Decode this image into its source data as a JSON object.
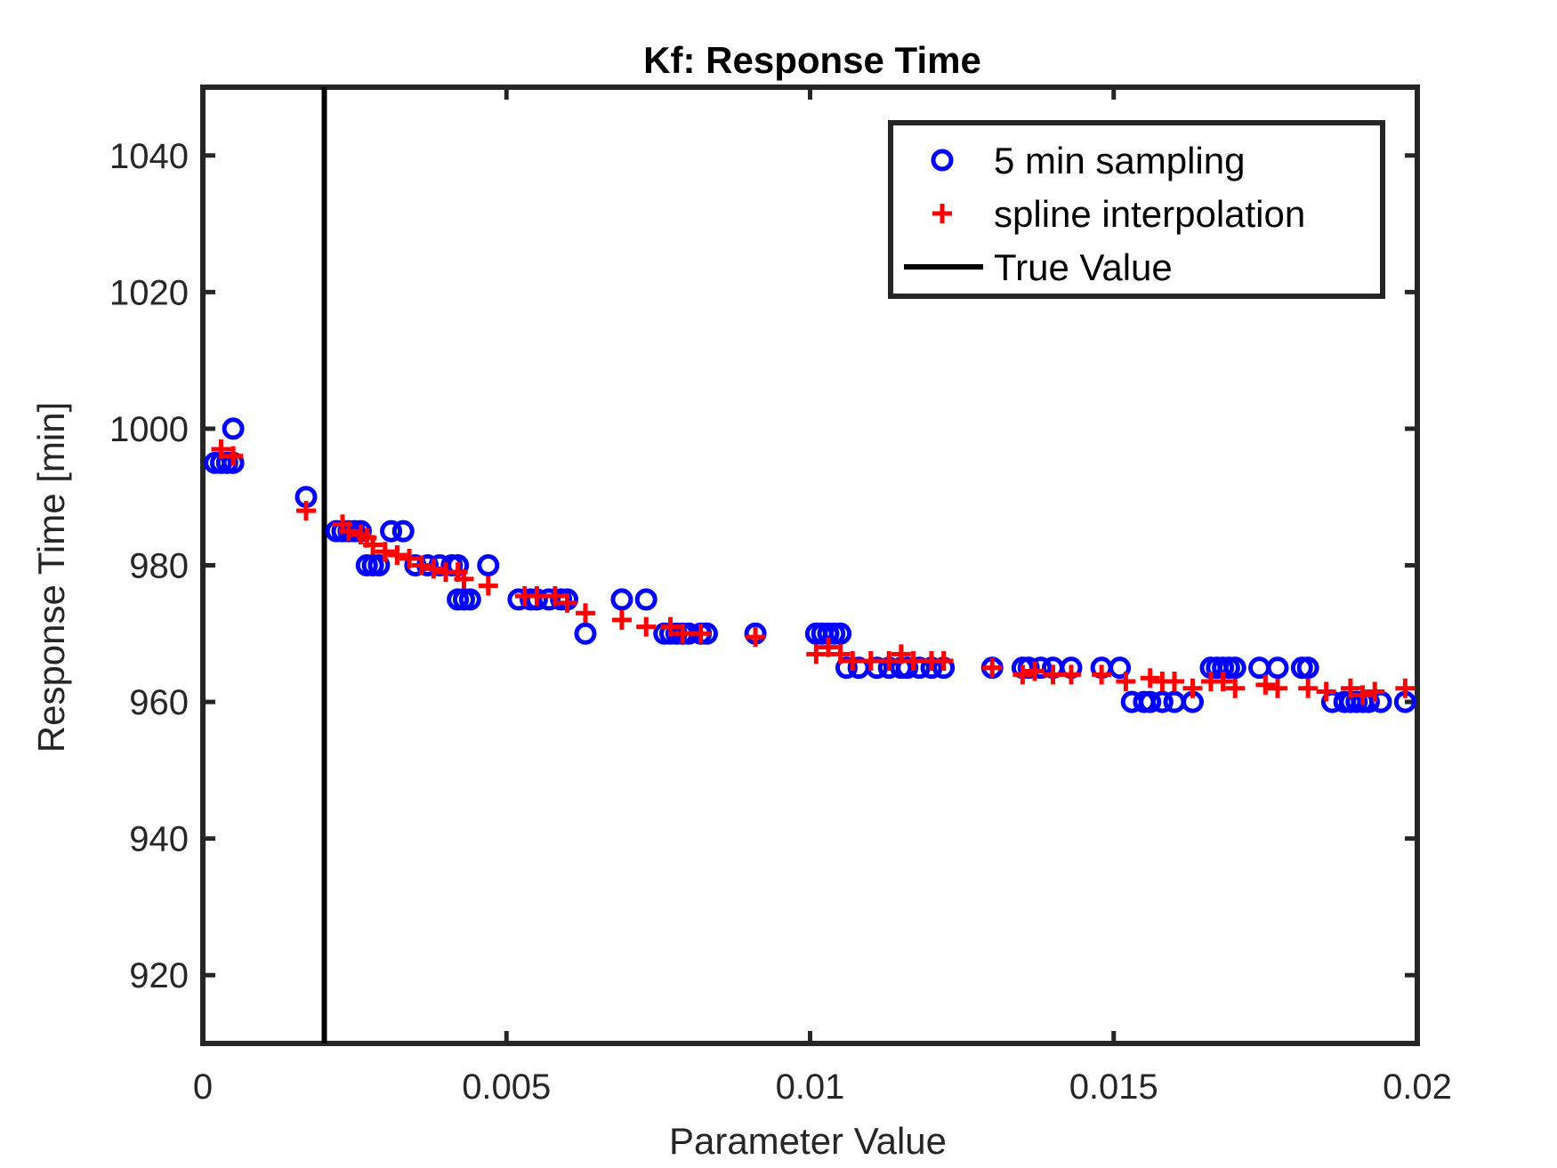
{
  "chart_data": {
    "type": "scatter",
    "title": "Kf: Response Time",
    "xlabel": "Parameter Value",
    "ylabel": "Response Time [min]",
    "xlim": [
      0,
      0.02
    ],
    "ylim": [
      910,
      1050
    ],
    "xticks": [
      0,
      0.005,
      0.01,
      0.015,
      0.02
    ],
    "xtick_labels": [
      "0",
      "0.005",
      "0.01",
      "0.015",
      "0.02"
    ],
    "yticks": [
      920,
      940,
      960,
      980,
      1000,
      1020,
      1040
    ],
    "ytick_labels": [
      "920",
      "940",
      "960",
      "980",
      "1000",
      "1020",
      "1040"
    ],
    "grid": false,
    "legend_position": "top-right",
    "true_value": 0.002,
    "series": [
      {
        "name": "5 min sampling",
        "marker": "circle",
        "color": "#0000ff",
        "points": [
          [
            0.0002,
            995
          ],
          [
            0.0003,
            995
          ],
          [
            0.0004,
            995
          ],
          [
            0.0005,
            995
          ],
          [
            0.0005,
            1000
          ],
          [
            0.0017,
            990
          ],
          [
            0.0022,
            985
          ],
          [
            0.0023,
            985
          ],
          [
            0.0024,
            985
          ],
          [
            0.0025,
            985
          ],
          [
            0.0026,
            985
          ],
          [
            0.0027,
            980
          ],
          [
            0.0028,
            980
          ],
          [
            0.0029,
            980
          ],
          [
            0.0031,
            985
          ],
          [
            0.0033,
            985
          ],
          [
            0.0035,
            980
          ],
          [
            0.0037,
            980
          ],
          [
            0.0039,
            980
          ],
          [
            0.0041,
            980
          ],
          [
            0.0042,
            980
          ],
          [
            0.0042,
            975
          ],
          [
            0.0043,
            975
          ],
          [
            0.0044,
            975
          ],
          [
            0.0047,
            980
          ],
          [
            0.0052,
            975
          ],
          [
            0.0054,
            975
          ],
          [
            0.0055,
            975
          ],
          [
            0.0057,
            975
          ],
          [
            0.0059,
            975
          ],
          [
            0.006,
            975
          ],
          [
            0.0063,
            970
          ],
          [
            0.0069,
            975
          ],
          [
            0.0073,
            975
          ],
          [
            0.0076,
            970
          ],
          [
            0.0077,
            970
          ],
          [
            0.0078,
            970
          ],
          [
            0.0079,
            970
          ],
          [
            0.008,
            970
          ],
          [
            0.0082,
            970
          ],
          [
            0.0083,
            970
          ],
          [
            0.0091,
            970
          ],
          [
            0.0101,
            970
          ],
          [
            0.0102,
            970
          ],
          [
            0.0103,
            970
          ],
          [
            0.0104,
            970
          ],
          [
            0.0105,
            970
          ],
          [
            0.0106,
            965
          ],
          [
            0.0108,
            965
          ],
          [
            0.0111,
            965
          ],
          [
            0.0113,
            965
          ],
          [
            0.0115,
            965
          ],
          [
            0.0116,
            965
          ],
          [
            0.0118,
            965
          ],
          [
            0.012,
            965
          ],
          [
            0.0122,
            965
          ],
          [
            0.013,
            965
          ],
          [
            0.0135,
            965
          ],
          [
            0.0136,
            965
          ],
          [
            0.0138,
            965
          ],
          [
            0.014,
            965
          ],
          [
            0.0143,
            965
          ],
          [
            0.0148,
            965
          ],
          [
            0.0151,
            965
          ],
          [
            0.0153,
            960
          ],
          [
            0.0155,
            960
          ],
          [
            0.0156,
            960
          ],
          [
            0.0158,
            960
          ],
          [
            0.016,
            960
          ],
          [
            0.0163,
            960
          ],
          [
            0.0166,
            965
          ],
          [
            0.0167,
            965
          ],
          [
            0.0168,
            965
          ],
          [
            0.0169,
            965
          ],
          [
            0.017,
            965
          ],
          [
            0.0174,
            965
          ],
          [
            0.0177,
            965
          ],
          [
            0.0181,
            965
          ],
          [
            0.0182,
            965
          ],
          [
            0.0186,
            960
          ],
          [
            0.0188,
            960
          ],
          [
            0.0189,
            960
          ],
          [
            0.019,
            960
          ],
          [
            0.0191,
            960
          ],
          [
            0.0192,
            960
          ],
          [
            0.0194,
            960
          ],
          [
            0.0198,
            960
          ]
        ]
      },
      {
        "name": "spline interpolation",
        "marker": "plus",
        "color": "#ff0000",
        "points": [
          [
            0.0003,
            997
          ],
          [
            0.0005,
            996
          ],
          [
            0.0017,
            988
          ],
          [
            0.0023,
            986
          ],
          [
            0.0024,
            985
          ],
          [
            0.0026,
            984.5
          ],
          [
            0.0027,
            984
          ],
          [
            0.0028,
            983
          ],
          [
            0.003,
            982
          ],
          [
            0.0032,
            981.5
          ],
          [
            0.0034,
            981
          ],
          [
            0.0036,
            980
          ],
          [
            0.0038,
            979.5
          ],
          [
            0.004,
            979
          ],
          [
            0.0042,
            979
          ],
          [
            0.0043,
            978
          ],
          [
            0.0047,
            977
          ],
          [
            0.0053,
            975.5
          ],
          [
            0.0055,
            975.5
          ],
          [
            0.0058,
            975.5
          ],
          [
            0.006,
            974.5
          ],
          [
            0.0063,
            973
          ],
          [
            0.0069,
            972
          ],
          [
            0.0073,
            971
          ],
          [
            0.0077,
            971
          ],
          [
            0.0079,
            970
          ],
          [
            0.0082,
            970
          ],
          [
            0.0091,
            969.5
          ],
          [
            0.0101,
            967
          ],
          [
            0.0103,
            968
          ],
          [
            0.0105,
            967
          ],
          [
            0.0107,
            966
          ],
          [
            0.011,
            966
          ],
          [
            0.0113,
            966
          ],
          [
            0.0115,
            967
          ],
          [
            0.0117,
            966
          ],
          [
            0.012,
            966
          ],
          [
            0.0122,
            966
          ],
          [
            0.013,
            965
          ],
          [
            0.0135,
            964
          ],
          [
            0.0137,
            964.5
          ],
          [
            0.014,
            964
          ],
          [
            0.0143,
            964
          ],
          [
            0.0148,
            964
          ],
          [
            0.0152,
            963
          ],
          [
            0.0156,
            963.5
          ],
          [
            0.0158,
            963
          ],
          [
            0.016,
            963
          ],
          [
            0.0163,
            962
          ],
          [
            0.0166,
            963
          ],
          [
            0.0168,
            963
          ],
          [
            0.017,
            962
          ],
          [
            0.0175,
            962.5
          ],
          [
            0.0177,
            962
          ],
          [
            0.0182,
            962
          ],
          [
            0.0185,
            961.5
          ],
          [
            0.0189,
            962
          ],
          [
            0.0191,
            961
          ],
          [
            0.0193,
            961.5
          ],
          [
            0.0198,
            962
          ]
        ]
      }
    ],
    "legend": {
      "entries": [
        {
          "label": "5 min sampling",
          "marker": "circle",
          "color": "#0000ff"
        },
        {
          "label": "spline interpolation",
          "marker": "plus",
          "color": "#ff0000"
        },
        {
          "label": "True Value",
          "marker": "line",
          "color": "#000000"
        }
      ]
    }
  }
}
